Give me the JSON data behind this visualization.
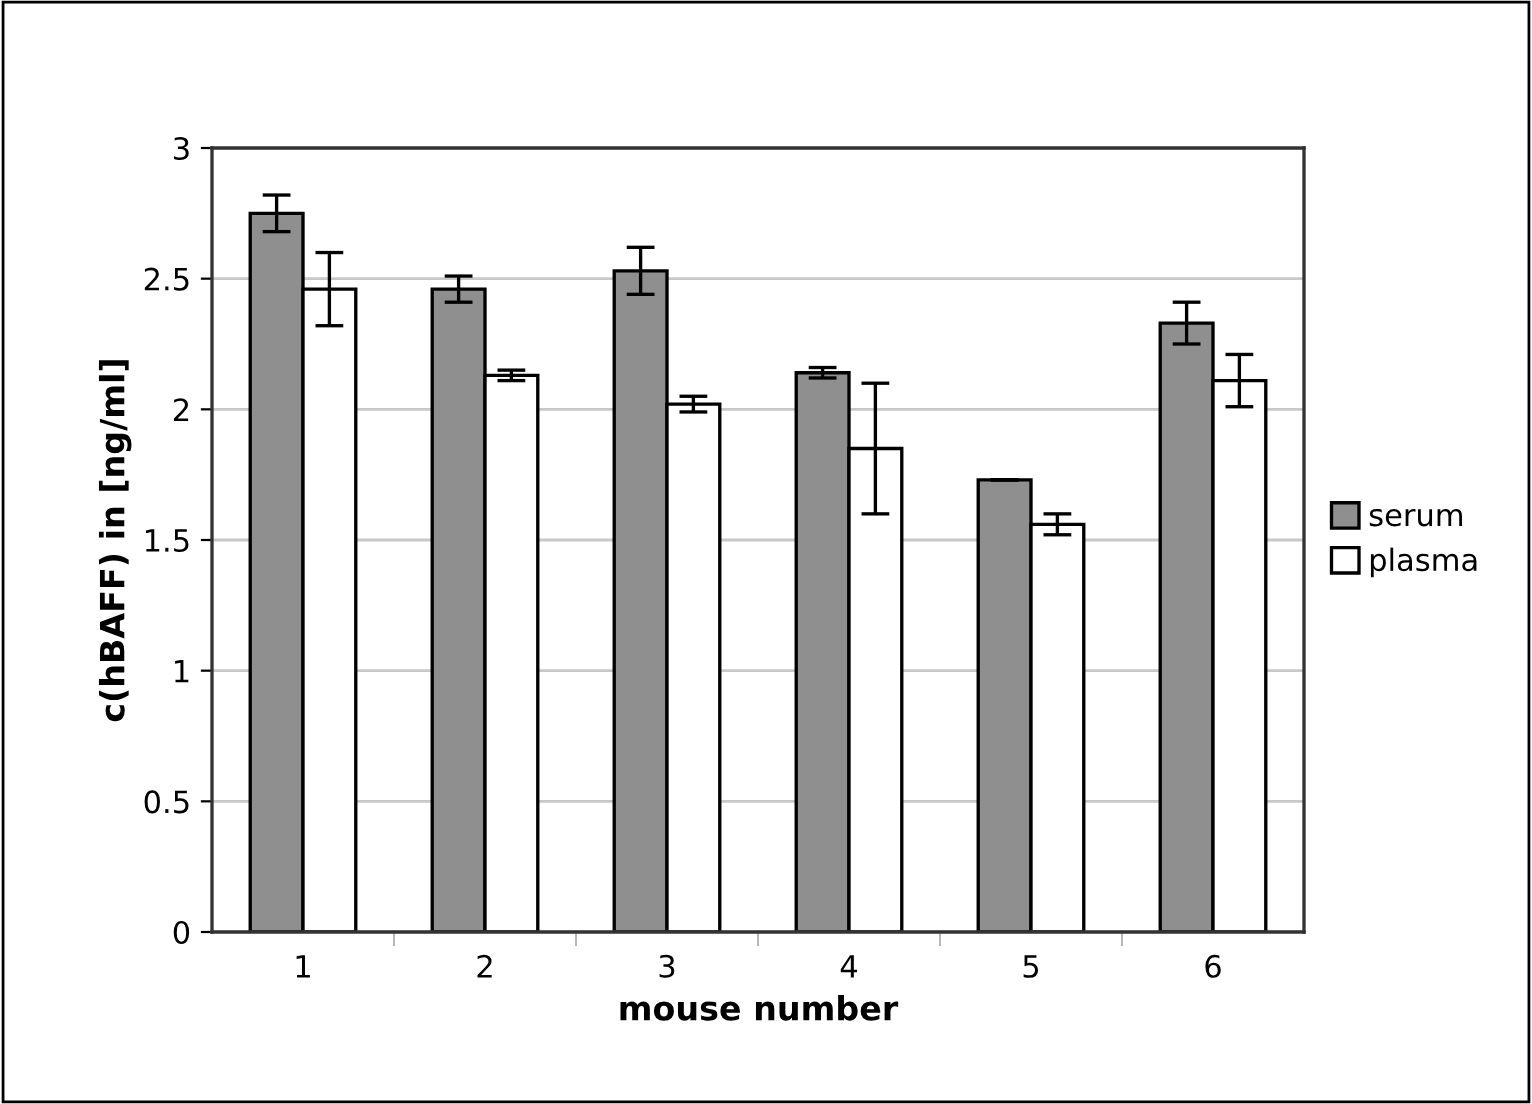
{
  "chart_data": {
    "type": "bar",
    "xlabel": "mouse number",
    "ylabel": "c(hBAFF) in [ng/ml]",
    "categories": [
      "1",
      "2",
      "3",
      "4",
      "5",
      "6"
    ],
    "series": [
      {
        "name": "serum",
        "color": "#8f8f8f",
        "values": [
          2.75,
          2.46,
          2.53,
          2.14,
          1.73,
          2.33
        ],
        "errors": [
          0.07,
          0.05,
          0.09,
          0.02,
          0,
          0.08
        ]
      },
      {
        "name": "plasma",
        "color": "#ffffff",
        "values": [
          2.46,
          2.13,
          2.02,
          1.85,
          1.56,
          2.11
        ],
        "errors": [
          0.14,
          0.02,
          0.03,
          0.25,
          0.04,
          0.1
        ]
      }
    ],
    "ylim": [
      0,
      3
    ],
    "yticks": [
      0,
      0.5,
      1,
      1.5,
      2,
      2.5,
      3
    ],
    "grid": "y",
    "legend": "right"
  }
}
